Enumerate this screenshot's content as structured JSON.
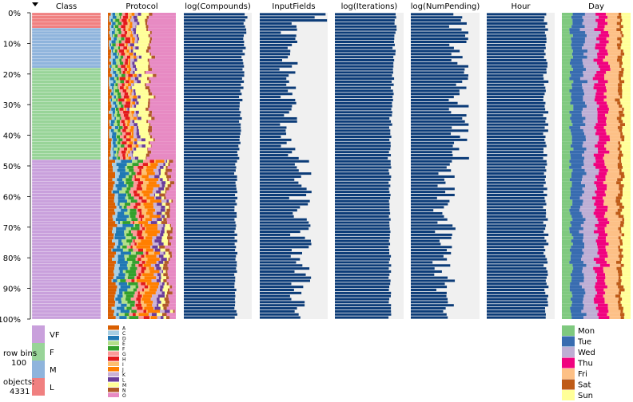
{
  "chart_data": {
    "type": "table",
    "description_visible": "tableplot",
    "row_bins": "100",
    "row_bins_label": "row bins",
    "objects_label": "objects:",
    "objects": "4331",
    "y_axis_ticks": [
      "0%",
      "10%",
      "20%",
      "30%",
      "40%",
      "50%",
      "60%",
      "70%",
      "80%",
      "90%",
      "100%"
    ],
    "sorted_by": "Class",
    "columns": [
      {
        "name": "Class",
        "kind": "categorical",
        "categories": [
          "VF",
          "F",
          "M",
          "L"
        ],
        "colors": {
          "L": "#f08080",
          "M": "#8fb4dc",
          "F": "#98d498",
          "VF": "#c9a0dc"
        },
        "segments": [
          {
            "category": "L",
            "from_pct": 0,
            "to_pct": 5
          },
          {
            "category": "M",
            "from_pct": 5,
            "to_pct": 18
          },
          {
            "category": "F",
            "from_pct": 18,
            "to_pct": 48
          },
          {
            "category": "VF",
            "from_pct": 48,
            "to_pct": 100
          }
        ]
      },
      {
        "name": "Protocol",
        "kind": "categorical",
        "categories": [
          "A",
          "C",
          "D",
          "E",
          "F",
          "G",
          "H",
          "I",
          "J",
          "K",
          "L",
          "M",
          "N",
          "O"
        ],
        "colors": [
          "#d95f02",
          "#a6cee3",
          "#1f78b4",
          "#b2df8a",
          "#33a02c",
          "#fb9a99",
          "#e31a1c",
          "#fdbf6f",
          "#ff7f00",
          "#cab2d6",
          "#6a3d9a",
          "#ffff99",
          "#b15928",
          "#e78ac3"
        ]
      },
      {
        "name": "log(Compounds)",
        "kind": "numeric",
        "max_fill": 0.95
      },
      {
        "name": "InputFields",
        "kind": "numeric",
        "max_fill": 0.95
      },
      {
        "name": "log(Iterations)",
        "kind": "numeric",
        "max_fill": 0.95
      },
      {
        "name": "log(NumPending)",
        "kind": "numeric",
        "max_fill": 0.95
      },
      {
        "name": "Hour",
        "kind": "numeric",
        "max_fill": 0.95
      },
      {
        "name": "Day",
        "kind": "categorical",
        "categories": [
          "Mon",
          "Tue",
          "Wed",
          "Thu",
          "Fri",
          "Sat",
          "Sun"
        ],
        "colors": {
          "Mon": "#7fc97f",
          "Tue": "#386cb0",
          "Wed": "#beaed4",
          "Thu": "#f0027f",
          "Fri": "#fdc086",
          "Sat": "#bf5b17",
          "Sun": "#ffff99"
        }
      }
    ]
  },
  "colors": {
    "bar_fill": "#0c3c78",
    "bar_bg": "#f0f0f0"
  }
}
